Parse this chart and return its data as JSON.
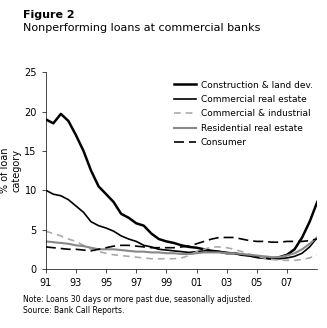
{
  "title_line1": "Figure 2",
  "title_line2": "Nonperforming loans at commercial banks",
  "ylabel": "% of loan\ncategory",
  "note": "Note: Loans 30 days or more past due, seasonally adjusted.\nSource: Bank Call Reports.",
  "xlim": [
    1991,
    2009
  ],
  "ylim": [
    0,
    25
  ],
  "yticks": [
    0,
    5,
    10,
    15,
    20,
    25
  ],
  "xtick_labels": [
    "91",
    "93",
    "95",
    "97",
    "99",
    "01",
    "03",
    "05",
    "07"
  ],
  "xtick_positions": [
    1991,
    1993,
    1995,
    1997,
    1999,
    2001,
    2003,
    2005,
    2007
  ],
  "background_color": "#ffffff",
  "series": [
    {
      "label": "Construction & land dev.",
      "color": "#000000",
      "linewidth": 1.8,
      "linestyle": "solid",
      "dashes": null,
      "x": [
        1991.0,
        1991.5,
        1992.0,
        1992.5,
        1993.0,
        1993.5,
        1994.0,
        1994.5,
        1995.0,
        1995.5,
        1996.0,
        1996.5,
        1997.0,
        1997.5,
        1998.0,
        1998.5,
        1999.0,
        1999.5,
        2000.0,
        2000.5,
        2001.0,
        2001.5,
        2002.0,
        2002.5,
        2003.0,
        2003.5,
        2004.0,
        2004.5,
        2005.0,
        2005.5,
        2006.0,
        2006.5,
        2007.0,
        2007.5,
        2008.0,
        2008.5,
        2009.0
      ],
      "y": [
        19.0,
        18.5,
        19.7,
        18.8,
        17.0,
        15.0,
        12.5,
        10.5,
        9.5,
        8.5,
        7.0,
        6.5,
        5.8,
        5.5,
        4.5,
        3.8,
        3.5,
        3.3,
        3.0,
        2.8,
        2.7,
        2.5,
        2.3,
        2.2,
        2.0,
        2.0,
        1.8,
        1.7,
        1.5,
        1.4,
        1.3,
        1.5,
        1.8,
        2.5,
        4.0,
        6.0,
        8.5
      ]
    },
    {
      "label": "Commercial real estate",
      "color": "#000000",
      "linewidth": 1.2,
      "linestyle": "solid",
      "dashes": null,
      "x": [
        1991.0,
        1991.5,
        1992.0,
        1992.5,
        1993.0,
        1993.5,
        1994.0,
        1994.5,
        1995.0,
        1995.5,
        1996.0,
        1996.5,
        1997.0,
        1997.5,
        1998.0,
        1998.5,
        1999.0,
        1999.5,
        2000.0,
        2000.5,
        2001.0,
        2001.5,
        2002.0,
        2002.5,
        2003.0,
        2003.5,
        2004.0,
        2004.5,
        2005.0,
        2005.5,
        2006.0,
        2006.5,
        2007.0,
        2007.5,
        2008.0,
        2008.5,
        2009.0
      ],
      "y": [
        10.0,
        9.5,
        9.3,
        8.8,
        8.0,
        7.2,
        6.0,
        5.5,
        5.2,
        4.8,
        4.2,
        3.8,
        3.5,
        3.0,
        2.8,
        2.5,
        2.4,
        2.3,
        2.2,
        2.1,
        2.2,
        2.3,
        2.3,
        2.2,
        2.1,
        2.0,
        1.8,
        1.7,
        1.5,
        1.4,
        1.3,
        1.3,
        1.4,
        1.6,
        2.0,
        2.8,
        4.0
      ]
    },
    {
      "label": "Commercial & industrial",
      "color": "#aaaaaa",
      "linewidth": 1.2,
      "linestyle": "dashed",
      "dashes": [
        4,
        3
      ],
      "x": [
        1991.0,
        1991.5,
        1992.0,
        1992.5,
        1993.0,
        1993.5,
        1994.0,
        1994.5,
        1995.0,
        1995.5,
        1996.0,
        1996.5,
        1997.0,
        1997.5,
        1998.0,
        1998.5,
        1999.0,
        1999.5,
        2000.0,
        2000.5,
        2001.0,
        2001.5,
        2002.0,
        2002.5,
        2003.0,
        2003.5,
        2004.0,
        2004.5,
        2005.0,
        2005.5,
        2006.0,
        2006.5,
        2007.0,
        2007.5,
        2008.0,
        2008.5,
        2009.0
      ],
      "y": [
        4.8,
        4.5,
        4.2,
        3.8,
        3.5,
        3.0,
        2.5,
        2.2,
        2.0,
        1.8,
        1.7,
        1.6,
        1.5,
        1.4,
        1.3,
        1.3,
        1.3,
        1.3,
        1.4,
        1.7,
        2.2,
        2.5,
        2.8,
        2.8,
        2.7,
        2.5,
        2.2,
        1.9,
        1.6,
        1.4,
        1.2,
        1.1,
        1.1,
        1.1,
        1.2,
        1.4,
        1.8
      ]
    },
    {
      "label": "Residential real estate",
      "color": "#888888",
      "linewidth": 1.5,
      "linestyle": "solid",
      "dashes": null,
      "x": [
        1991.0,
        1991.5,
        1992.0,
        1992.5,
        1993.0,
        1993.5,
        1994.0,
        1994.5,
        1995.0,
        1995.5,
        1996.0,
        1996.5,
        1997.0,
        1997.5,
        1998.0,
        1998.5,
        1999.0,
        1999.5,
        2000.0,
        2000.5,
        2001.0,
        2001.5,
        2002.0,
        2002.5,
        2003.0,
        2003.5,
        2004.0,
        2004.5,
        2005.0,
        2005.5,
        2006.0,
        2006.5,
        2007.0,
        2007.5,
        2008.0,
        2008.5,
        2009.0
      ],
      "y": [
        3.5,
        3.4,
        3.3,
        3.2,
        3.0,
        2.9,
        2.7,
        2.5,
        2.5,
        2.5,
        2.4,
        2.3,
        2.2,
        2.2,
        2.1,
        2.1,
        2.0,
        2.0,
        1.9,
        1.9,
        2.0,
        2.1,
        2.1,
        2.1,
        2.0,
        2.0,
        1.9,
        1.8,
        1.7,
        1.6,
        1.5,
        1.5,
        1.7,
        2.0,
        2.5,
        3.2,
        4.0
      ]
    },
    {
      "label": "Consumer",
      "color": "#000000",
      "linewidth": 1.2,
      "linestyle": "dashed",
      "dashes": [
        6,
        3
      ],
      "x": [
        1991.0,
        1991.5,
        1992.0,
        1992.5,
        1993.0,
        1993.5,
        1994.0,
        1994.5,
        1995.0,
        1995.5,
        1996.0,
        1996.5,
        1997.0,
        1997.5,
        1998.0,
        1998.5,
        1999.0,
        1999.5,
        2000.0,
        2000.5,
        2001.0,
        2001.5,
        2002.0,
        2002.5,
        2003.0,
        2003.5,
        2004.0,
        2004.5,
        2005.0,
        2005.5,
        2006.0,
        2006.5,
        2007.0,
        2007.5,
        2008.0,
        2008.5,
        2009.0
      ],
      "y": [
        2.8,
        2.7,
        2.6,
        2.5,
        2.5,
        2.4,
        2.3,
        2.5,
        2.7,
        2.9,
        3.0,
        3.0,
        2.9,
        2.8,
        2.7,
        2.7,
        2.7,
        2.7,
        2.8,
        2.9,
        3.2,
        3.5,
        3.8,
        4.0,
        4.0,
        4.0,
        3.8,
        3.6,
        3.5,
        3.5,
        3.4,
        3.4,
        3.5,
        3.5,
        3.5,
        3.6,
        3.8
      ]
    }
  ]
}
